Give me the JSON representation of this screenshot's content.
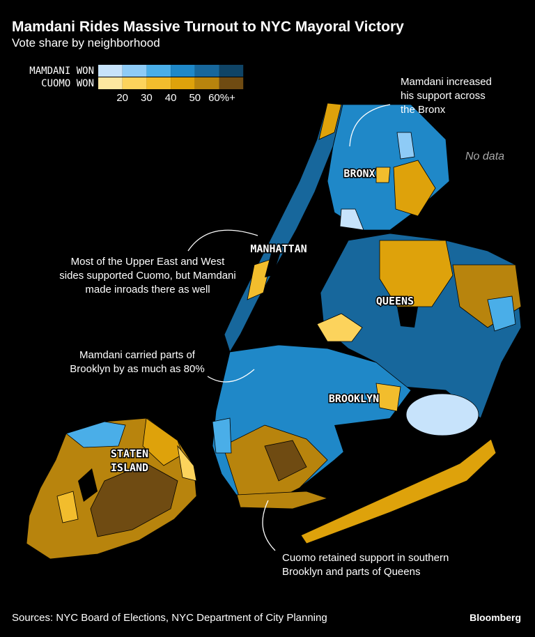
{
  "header": {
    "title": "Mamdani Rides Massive Turnout to NYC Mayoral Victory",
    "subtitle": "Vote share by neighborhood"
  },
  "legend": {
    "rows": [
      {
        "label": "MAMDANI WON",
        "colors": [
          "#c7e3fb",
          "#8ecbf6",
          "#4aaee8",
          "#1f88c8",
          "#17679c",
          "#0f4466"
        ]
      },
      {
        "label": "CUOMO WON",
        "colors": [
          "#fde7a0",
          "#fcd35c",
          "#f2bd2d",
          "#dea20b",
          "#b8840d",
          "#6f4b12"
        ]
      }
    ],
    "ticks": [
      "20",
      "30",
      "40",
      "50",
      "60%+"
    ]
  },
  "boroughs": [
    "BRONX",
    "MANHATTAN",
    "QUEENS",
    "BROOKLYN",
    [
      "STATEN",
      "ISLAND"
    ]
  ],
  "no_data": "No data",
  "annotations": [
    {
      "lines": [
        "Mamdani increased",
        "his support across",
        "the Bronx"
      ]
    },
    {
      "lines": [
        "Most of the Upper East and West",
        "sides supported Cuomo, but Mamdani",
        "made inroads there as well"
      ]
    },
    {
      "lines": [
        "Mamdani carried parts of",
        "Brooklyn by as much as 80%"
      ]
    },
    {
      "lines": [
        "Cuomo retained support in southern",
        "Brooklyn and parts of Queens"
      ]
    }
  ],
  "footer": {
    "source": "Sources: NYC Board of Elections, NYC Department of City Planning",
    "brand": "Bloomberg"
  }
}
